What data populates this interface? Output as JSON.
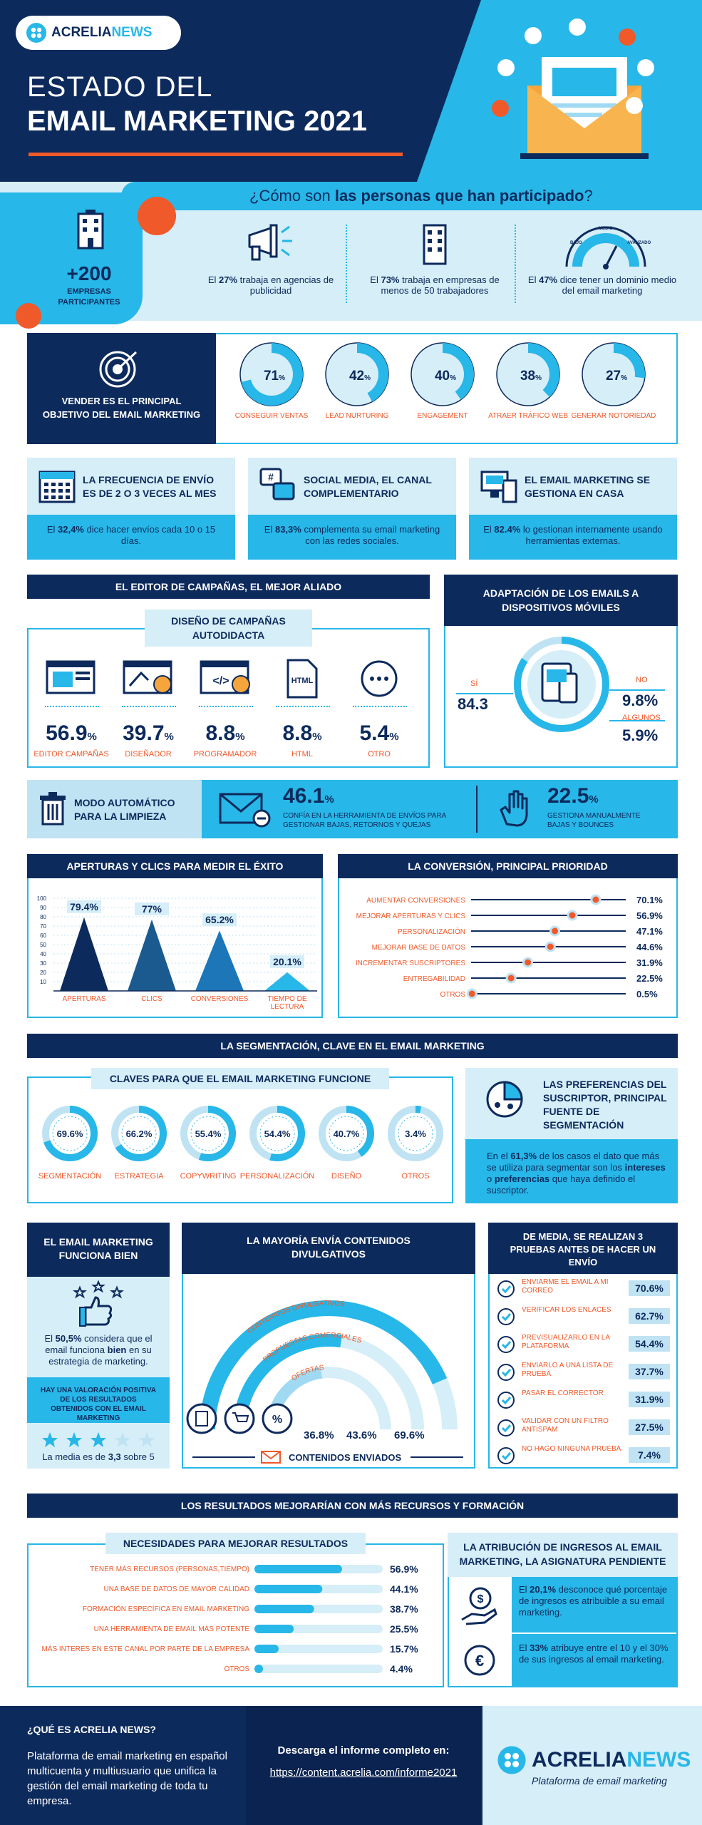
{
  "header": {
    "logo_a": "ACRELIA",
    "logo_b": "NEWS",
    "title1": "ESTADO DEL",
    "title2": "EMAIL MARKETING 2021"
  },
  "participants": {
    "heading_pre": "¿Cómo son ",
    "heading_bold": "las personas que han participado",
    "heading_post": "?",
    "count": "+200",
    "count_label": "EMPRESAS PARTICIPANTES",
    "stats": [
      {
        "pre": "El ",
        "pct": "27%",
        "post": " trabaja en agencias de publicidad"
      },
      {
        "pre": "El ",
        "pct": "73%",
        "post": " trabaja en empresas de menos de 50 trabajadores"
      },
      {
        "pre": "El ",
        "pct": "47%",
        "post": " dice tener un dominio medio del email marketing"
      }
    ],
    "gauge": [
      "BAJO",
      "MEDIO",
      "AVANZADO"
    ]
  },
  "objectives": {
    "title": "VENDER ES EL PRINCIPAL OBJETIVO DEL EMAIL MARKETING",
    "items": [
      {
        "v": 71,
        "l": "71",
        "label": "CONSEGUIR VENTAS"
      },
      {
        "v": 42,
        "l": "42",
        "label": "LEAD NURTURING"
      },
      {
        "v": 40,
        "l": "40",
        "label": "ENGAGEMENT"
      },
      {
        "v": 38,
        "l": "38",
        "label": "ATRAER TRÁFICO WEB"
      },
      {
        "v": 27,
        "l": "27",
        "label": "GENERAR NOTORIEDAD"
      }
    ]
  },
  "facts": [
    {
      "title": "LA FRECUENCIA DE ENVÍO ES DE 2 O 3 VECES AL MES",
      "pre": "El ",
      "pct": "32,4%",
      "post": " dice hacer envíos cada 10 o 15 días."
    },
    {
      "title": "SOCIAL MEDIA, EL CANAL COMPLEMENTARIO",
      "pre": "El ",
      "pct": "83,3%",
      "post": " complementa su email marketing con las redes sociales."
    },
    {
      "title": "EL EMAIL MARKETING SE GESTIONA EN CASA",
      "pre": "El ",
      "pct": "82.4%",
      "post": " lo gestionan internamente usando herramientas externas."
    }
  ],
  "editor": {
    "head": "EL EDITOR DE CAMPAÑAS, EL MEJOR ALIADO",
    "sub": "DISEÑO DE CAMPAÑAS AUTODIDACTA",
    "items": [
      {
        "v": "56.9",
        "label": "EDITOR CAMPAÑAS",
        "icon": "editor-icon"
      },
      {
        "v": "39.7",
        "label": "DISEÑADOR",
        "icon": "designer-icon"
      },
      {
        "v": "8.8",
        "label": "PROGRAMADOR",
        "icon": "programmer-icon"
      },
      {
        "v": "8.8",
        "label": "HTML",
        "icon": "html-file-icon"
      },
      {
        "v": "5.4",
        "label": "OTRO",
        "icon": "dots-icon"
      }
    ]
  },
  "mobile": {
    "head": "ADAPTACIÓN DE LOS EMAILS A DISPOSITIVOS MÓVILES",
    "si_label": "SÍ",
    "si": "84.3",
    "no_label": "NO",
    "no": "9.8%",
    "alg_label": "ALGUNOS",
    "alg": "5.9%"
  },
  "cleanup": {
    "title": "MODO AUTOMÁTICO PARA LA LIMPIEZA",
    "a_val": "46.1",
    "a_txt": "CONFÍA EN LA HERRAMIENTA DE ENVÍOS PARA GESTIONAR BAJAS, RETORNOS Y QUEJAS",
    "b_val": "22.5",
    "b_txt": "GESTIONA MANUALMENTE BAJAS Y BOUNCES"
  },
  "opens": {
    "head": "APERTURAS Y CLICS PARA MEDIR EL ÉXITO"
  },
  "conversion": {
    "head": "LA CONVERSIÓN, PRINCIPAL PRIORIDAD"
  },
  "chart_data": [
    {
      "type": "area",
      "title": "APERTURAS Y CLICS PARA MEDIR EL ÉXITO",
      "categories": [
        "APERTURAS",
        "CLICS",
        "CONVERSIONES",
        "TIEMPO DE LECTURA"
      ],
      "values": [
        79.4,
        77,
        65.2,
        20.1
      ],
      "value_labels": [
        "79.4%",
        "77%",
        "65.2%",
        "20.1%"
      ],
      "yticks": [
        100,
        90,
        80,
        70,
        60,
        50,
        40,
        30,
        20,
        10
      ],
      "ylim": [
        0,
        100
      ]
    },
    {
      "type": "scatter",
      "title": "LA CONVERSIÓN, PRINCIPAL PRIORIDAD",
      "categories": [
        "AUMENTAR CONVERSIONES",
        "MEJORAR APERTURAS Y CLICS",
        "PERSONALIZACIÓN",
        "MEJORAR BASE DE DATOS",
        "INCREMENTAR SUSCRIPTORES",
        "ENTREGABILIDAD",
        "OTROS"
      ],
      "values": [
        70.1,
        56.9,
        47.1,
        44.6,
        31.9,
        22.5,
        0.5
      ],
      "value_labels": [
        "70.1%",
        "56.9%",
        "47.1%",
        "44.6%",
        "31.9%",
        "22.5%",
        "0.5%"
      ]
    }
  ],
  "segmentation": {
    "head": "LA SEGMENTACIÓN, CLAVE EN EL EMAIL MARKETING",
    "sub": "CLAVES PARA QUE EL EMAIL MARKETING FUNCIONE",
    "items": [
      {
        "v": 69.6,
        "l": "69.6%",
        "label": "SEGMENTACIÓN"
      },
      {
        "v": 66.2,
        "l": "66.2%",
        "label": "ESTRATEGIA"
      },
      {
        "v": 55.4,
        "l": "55.4%",
        "label": "COPYWRITING"
      },
      {
        "v": 54.4,
        "l": "54.4%",
        "label": "PERSONALIZACIÓN"
      },
      {
        "v": 40.7,
        "l": "40.7%",
        "label": "DISEÑO"
      },
      {
        "v": 3.4,
        "l": "3.4%",
        "label": "OTROS"
      }
    ],
    "pref_title": "LAS PREFERENCIAS DEL SUSCRIPTOR, PRINCIPAL FUENTE DE SEGMENTACIÓN",
    "pref_pre": "En el ",
    "pref_pct": "61,3%",
    "pref_mid": " de los casos el dato que más se utiliza para segmentar son los ",
    "pref_b1": "intereses",
    "pref_mid2": " o ",
    "pref_b2": "preferencias",
    "pref_post": " que haya definido el suscriptor."
  },
  "works": {
    "title": "EL EMAIL MARKETING FUNCIONA BIEN",
    "pre": "El ",
    "pct": "50,5%",
    "mid": " considera que el email funciona ",
    "bold": "bien",
    "post": " en su estrategia de marketing.",
    "positive": "HAY UNA VALORACIÓN POSITIVA DE LOS RESULTADOS OBTENIDOS CON EL EMAIL MARKETING",
    "avg_pre": "La media es de ",
    "avg": "3,3",
    "avg_post": " sobre 5",
    "stars": 3.3
  },
  "content": {
    "head": "LA MAYORÍA ENVÍA CONTENIDOS DIVULGATIVOS",
    "arcs": [
      {
        "label": "CONTENIDOS DIVULGATIVOS",
        "v": 69.6,
        "l": "69.6%"
      },
      {
        "label": "PROPUESTAS COMERCIALES",
        "v": 43.6,
        "l": "43.6%"
      },
      {
        "label": "OFERTAS",
        "v": 36.8,
        "l": "36.8%"
      }
    ],
    "footer": "CONTENIDOS ENVIADOS"
  },
  "tests": {
    "head": "DE MEDIA, SE REALIZAN 3 PRUEBAS ANTES DE HACER UN ENVÍO",
    "items": [
      {
        "label": "ENVIARME EL EMAIL A MI CORREO",
        "v": "70.6%"
      },
      {
        "label": "VERIFICAR LOS ENLACES",
        "v": "62.7%"
      },
      {
        "label": "PREVISUALIZARLO EN LA PLATAFORMA",
        "v": "54.4%"
      },
      {
        "label": "ENVIARLO A UNA LISTA DE PRUEBA",
        "v": "37.7%"
      },
      {
        "label": "PASAR EL CORRECTOR",
        "v": "31.9%"
      },
      {
        "label": "VALIDAR CON UN FILTRO ANTISPAM",
        "v": "27.5%"
      },
      {
        "label": "NO HAGO NINGUNA PRUEBA",
        "v": "7.4%"
      }
    ]
  },
  "resources": {
    "head": "LOS RESULTADOS MEJORARÍAN CON MÁS RECURSOS Y FORMACIÓN",
    "sub": "NECESIDADES PARA MEJORAR RESULTADOS",
    "items": [
      {
        "label": "TENER MÁS RECURSOS (PERSONAS,TIEMPO)",
        "v": 56.9,
        "l": "56.9%"
      },
      {
        "label": "UNA BASE DE DATOS DE MAYOR CALIDAD",
        "v": 44.1,
        "l": "44.1%"
      },
      {
        "label": "FORMACIÓN ESPECÍFICA EN EMAIL MARKETING",
        "v": 38.7,
        "l": "38.7%"
      },
      {
        "label": "UNA HERRAMIENTA DE EMAIL MÁS POTENTE",
        "v": 25.5,
        "l": "25.5%"
      },
      {
        "label": "MÁS INTERÉS EN ESTE CANAL POR PARTE DE LA EMPRESA",
        "v": 15.7,
        "l": "15.7%"
      },
      {
        "label": "OTROS",
        "v": 4.4,
        "l": "4.4%"
      }
    ]
  },
  "attribution": {
    "head": "LA ATRIBUCIÓN DE INGRESOS AL EMAIL MARKETING, LA ASIGNATURA PENDIENTE",
    "a_pre": "El ",
    "a_pct": "20,1%",
    "a_post": " desconoce qué porcentaje de ingresos es atribuible a su email marketing.",
    "b_pre": "El ",
    "b_pct": "33%",
    "b_post": " atribuye entre el 10 y el 30% de sus ingresos al email marketing."
  },
  "footer": {
    "q": "¿QUÉ ES ACRELIA NEWS?",
    "desc": "Plataforma de email marketing en español multicuenta y multiusuario que unifica la gestión del email marketing de toda tu empresa.",
    "dl": "Descarga el informe completo en:",
    "url": "https://content.acrelia.com/informe2021",
    "logo_a": "ACRELIA",
    "logo_b": "NEWS",
    "tag": "Plataforma de email marketing"
  }
}
